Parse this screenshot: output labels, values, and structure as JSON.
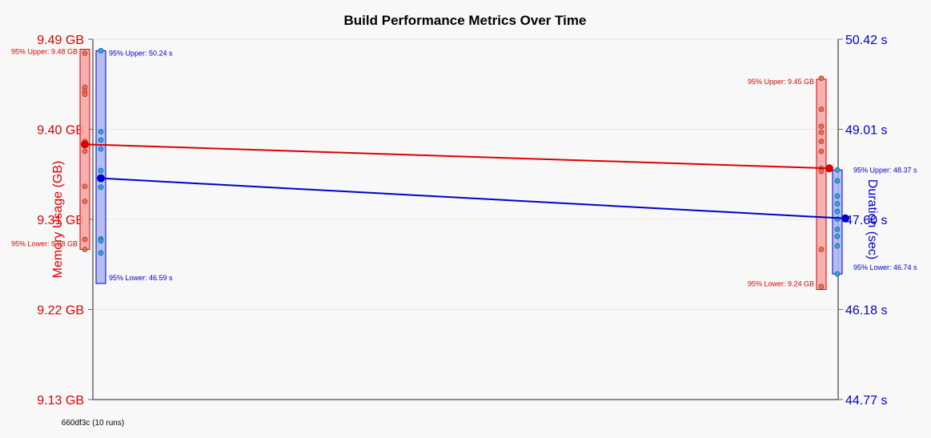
{
  "chart_data": {
    "type": "line",
    "title": "Build Performance Metrics Over Time",
    "ylabel_left": "Memory Usage (GB)",
    "ylabel_right": "Duration (sec)",
    "left_ticks": [
      "9.49 GB",
      "9.40 GB",
      "9.31 GB",
      "9.22 GB",
      "9.13 GB"
    ],
    "right_ticks": [
      "50.42 s",
      "49.01 s",
      "47.60 s",
      "46.18 s",
      "44.77 s"
    ],
    "left_range": [
      9.13,
      9.49
    ],
    "right_range": [
      44.77,
      50.42
    ],
    "x_labels": [
      "660df3c (10 runs)",
      ""
    ],
    "grid": true,
    "colors": {
      "memory": "#dd0000",
      "memory_fill": "#f5a3a3",
      "memory_point": "#e8704f",
      "duration": "#0000cc",
      "duration_fill": "#a8b4f0",
      "duration_point": "#3aa0e0",
      "axis": "#666666"
    },
    "series": [
      {
        "name": "memory",
        "axis": "left",
        "means": [
          9.385,
          9.361
        ],
        "upper": [
          9.48,
          9.45
        ],
        "lower": [
          9.28,
          9.24
        ],
        "upper_labels": [
          "95% Upper: 9.48 GB",
          "95% Upper: 9.45 GB"
        ],
        "lower_labels": [
          "95% Lower: 9.28 GB",
          "95% Lower: 9.24 GB"
        ],
        "runs": [
          [
            9.476,
            9.442,
            9.438,
            9.435,
            9.388,
            9.378,
            9.343,
            9.328,
            9.29,
            9.28
          ],
          [
            9.451,
            9.42,
            9.403,
            9.397,
            9.388,
            9.378,
            9.361,
            9.358,
            9.28,
            9.243
          ]
        ]
      },
      {
        "name": "duration",
        "axis": "right",
        "means": [
          48.24,
          47.61
        ],
        "upper": [
          50.24,
          48.37
        ],
        "lower": [
          46.59,
          46.74
        ],
        "upper_labels": [
          "95% Upper: 50.24 s",
          "95% Upper: 48.37 s"
        ],
        "lower_labels": [
          "95% Lower: 46.59 s",
          "95% Lower: 46.74 s"
        ],
        "runs": [
          [
            50.24,
            48.97,
            48.84,
            48.7,
            48.36,
            48.24,
            48.1,
            47.29,
            47.26,
            47.07
          ],
          [
            48.37,
            48.2,
            47.96,
            47.84,
            47.72,
            47.6,
            47.44,
            47.33,
            47.18,
            46.74
          ]
        ]
      }
    ]
  }
}
